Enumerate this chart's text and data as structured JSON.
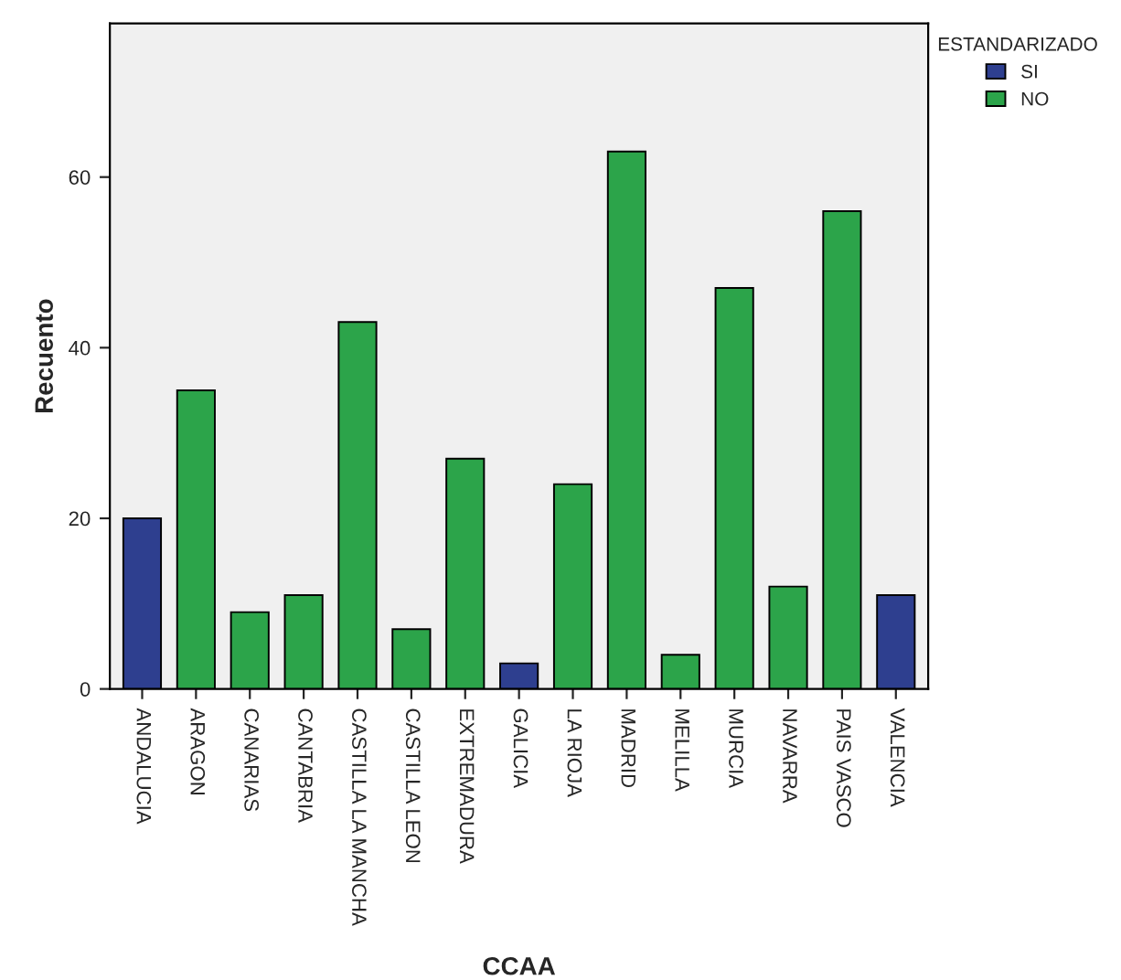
{
  "chart_data": {
    "type": "bar",
    "xlabel": "CCAA",
    "ylabel": "Recuento",
    "legend_title": "ESTANDARIZADO",
    "legend": "top right",
    "grid": false,
    "categories": [
      "ANDALUCIA",
      "ARAGON",
      "CANARIAS",
      "CANTABRIA",
      "CASTILLA LA MANCHA",
      "CASTILLA LEON",
      "EXTREMADURA",
      "GALICIA",
      "LA RIOJA",
      "MADRID",
      "MELILLA",
      "MURCIA",
      "NAVARRA",
      "PAIS VASCO",
      "VALENCIA"
    ],
    "series": [
      {
        "name": "SI",
        "color": "#2e3f8f",
        "values": [
          20,
          null,
          null,
          null,
          null,
          null,
          null,
          3,
          null,
          null,
          null,
          null,
          null,
          null,
          11
        ]
      },
      {
        "name": "NO",
        "color": "#2ca44a",
        "values": [
          null,
          35,
          9,
          11,
          43,
          7,
          27,
          null,
          24,
          63,
          4,
          47,
          12,
          56,
          null
        ]
      }
    ],
    "ylim": [
      0,
      78
    ],
    "yticks": [
      0,
      20,
      40,
      60
    ]
  }
}
